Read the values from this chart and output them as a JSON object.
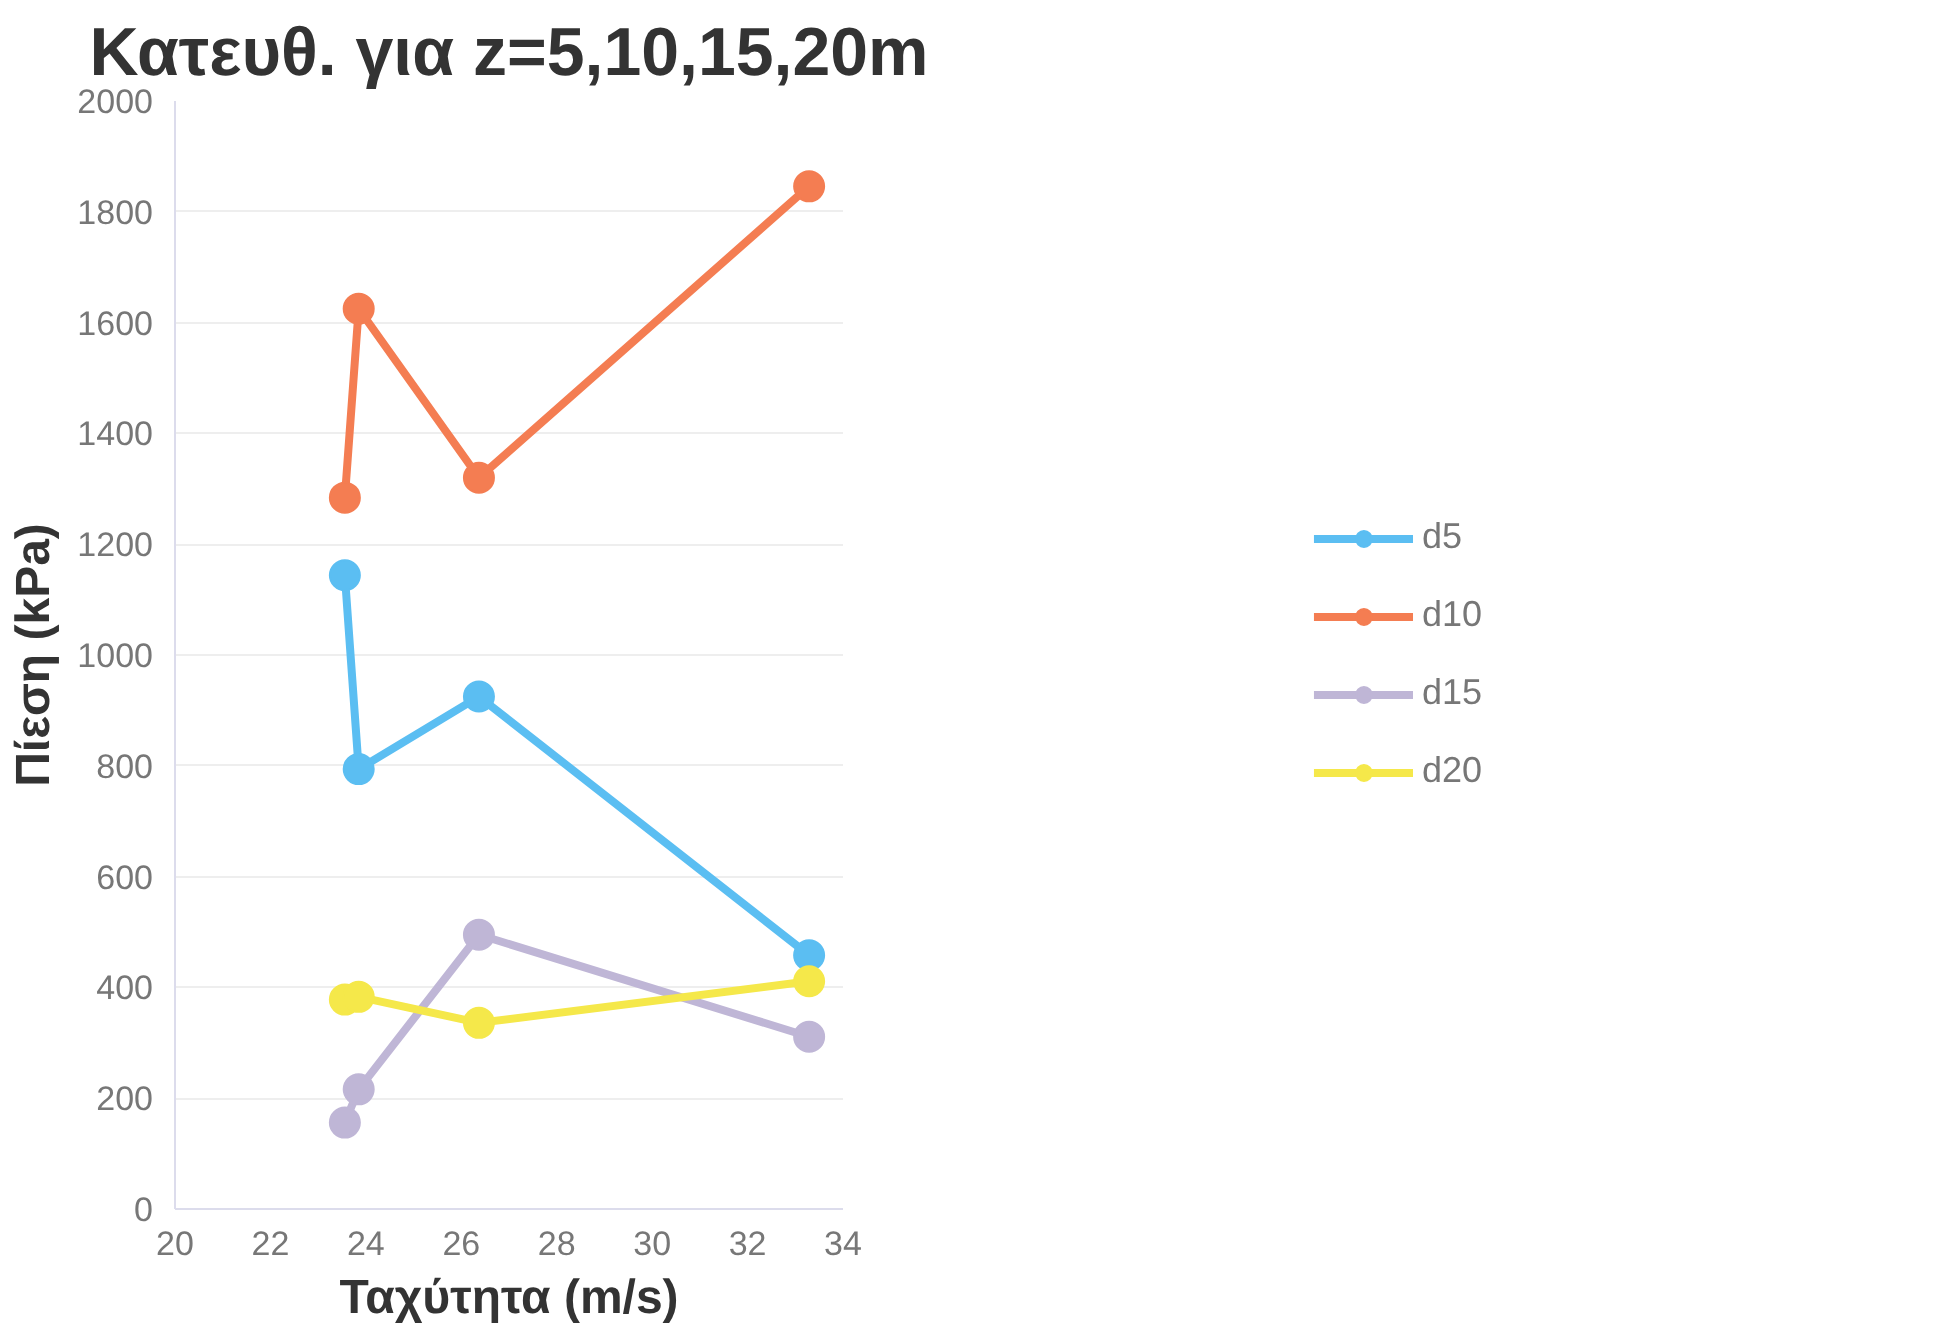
{
  "chart_data": {
    "type": "line",
    "title": "Κατευθ. για z=5,10,15,20m",
    "xlabel": "Ταχύτητα (m/s)",
    "ylabel": "Πίεση (kPa)",
    "x": [
      23.56,
      23.85,
      26.37,
      33.29
    ],
    "series": [
      {
        "name": "d5",
        "color": "#5bbef2",
        "values": [
          1144,
          794,
          925,
          458
        ]
      },
      {
        "name": "d10",
        "color": "#f47d52",
        "values": [
          1284,
          1625,
          1320,
          1846
        ]
      },
      {
        "name": "d15",
        "color": "#bfb6d6",
        "values": [
          156,
          216,
          495,
          311
        ]
      },
      {
        "name": "d20",
        "color": "#f5e84a",
        "values": [
          378,
          383,
          336,
          411
        ]
      }
    ],
    "xlim": [
      20,
      34
    ],
    "xticks": [
      20,
      22,
      24,
      26,
      28,
      30,
      32,
      34
    ],
    "ylim": [
      0,
      2000
    ],
    "yticks": [
      0,
      200,
      400,
      600,
      800,
      1000,
      1200,
      1400,
      1600,
      1800,
      2000
    ],
    "grid": "y",
    "legend": "right",
    "marker": "circle",
    "line_style": "solid"
  }
}
